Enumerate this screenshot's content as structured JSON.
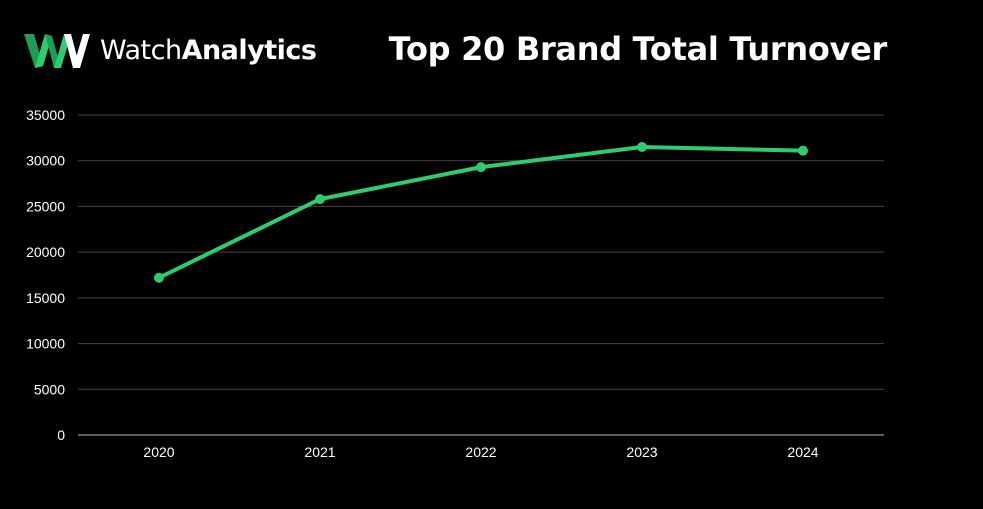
{
  "brand": {
    "name_light": "Watch",
    "name_bold": "Analytics",
    "icon": "watchanalytics-logo",
    "color": "#2ecc71"
  },
  "chart_data": {
    "type": "line",
    "title": "Top 20 Brand Total Turnover",
    "xlabel": "",
    "ylabel": "",
    "x": [
      "2020",
      "2021",
      "2022",
      "2023",
      "2024"
    ],
    "series": [
      {
        "values": [
          17200,
          25800,
          29300,
          31500,
          31100
        ],
        "color": "#2ecc71"
      }
    ],
    "ylim": [
      0,
      35000
    ],
    "yticks": [
      0,
      5000,
      10000,
      15000,
      20000,
      25000,
      30000,
      35000
    ],
    "grid": "horizontal",
    "legend": "none",
    "background": "#000000",
    "grid_color": "#444444"
  }
}
